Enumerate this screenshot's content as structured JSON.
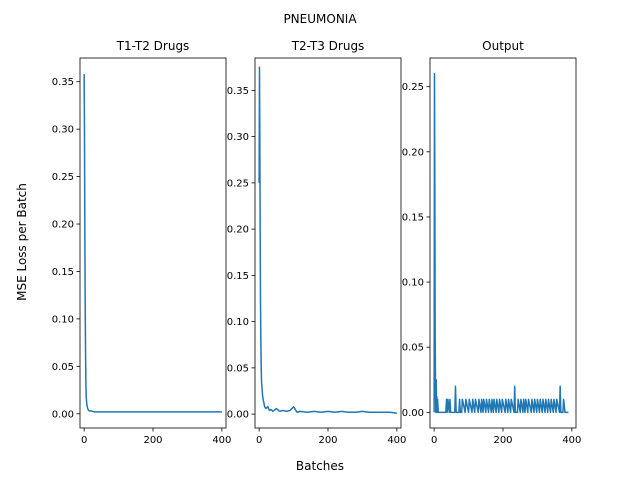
{
  "figure": {
    "suptitle": "PNEUMONIA",
    "xlabel": "Batches",
    "ylabel": "MSE Loss per Batch",
    "line_color": "#1f77b4"
  },
  "chart_data": [
    {
      "type": "line",
      "title": "T1-T2 Drugs",
      "xlim": [
        -12,
        412
      ],
      "ylim": [
        -0.015,
        0.375
      ],
      "xticks": [
        0,
        200,
        400
      ],
      "yticks": [
        0.0,
        0.05,
        0.1,
        0.15,
        0.2,
        0.25,
        0.3,
        0.35
      ],
      "ytick_labels": [
        "0.00",
        "0.05",
        "0.10",
        "0.15",
        "0.20",
        "0.25",
        "0.30",
        "0.35"
      ],
      "x": [
        0,
        1,
        2,
        3,
        4,
        5,
        6,
        8,
        10,
        12,
        15,
        20,
        30,
        40,
        50,
        60,
        80,
        100,
        120,
        150,
        200,
        250,
        300,
        350,
        400
      ],
      "y": [
        0.358,
        0.3,
        0.2,
        0.12,
        0.07,
        0.035,
        0.018,
        0.009,
        0.006,
        0.004,
        0.003,
        0.003,
        0.002,
        0.002,
        0.002,
        0.002,
        0.002,
        0.002,
        0.002,
        0.002,
        0.002,
        0.002,
        0.002,
        0.002,
        0.002
      ]
    },
    {
      "type": "line",
      "title": "T2-T3 Drugs",
      "xlim": [
        -12,
        412
      ],
      "ylim": [
        -0.015,
        0.385
      ],
      "xticks": [
        0,
        200,
        400
      ],
      "yticks": [
        0.0,
        0.05,
        0.1,
        0.15,
        0.2,
        0.25,
        0.3,
        0.35
      ],
      "ytick_labels": [
        "0.00",
        "0.05",
        "0.10",
        "0.15",
        "0.20",
        "0.25",
        "0.30",
        "0.35"
      ],
      "x": [
        0,
        1,
        2,
        3,
        4,
        5,
        6,
        7,
        8,
        10,
        12,
        14,
        16,
        20,
        25,
        30,
        35,
        40,
        50,
        60,
        70,
        80,
        90,
        100,
        110,
        120,
        140,
        160,
        180,
        200,
        220,
        240,
        260,
        280,
        300,
        320,
        340,
        360,
        380,
        400
      ],
      "y": [
        0.25,
        0.375,
        0.3,
        0.2,
        0.12,
        0.08,
        0.05,
        0.035,
        0.03,
        0.02,
        0.015,
        0.012,
        0.008,
        0.006,
        0.008,
        0.004,
        0.005,
        0.003,
        0.006,
        0.003,
        0.004,
        0.003,
        0.004,
        0.008,
        0.002,
        0.003,
        0.002,
        0.003,
        0.002,
        0.003,
        0.002,
        0.003,
        0.002,
        0.002,
        0.003,
        0.002,
        0.002,
        0.002,
        0.002,
        0.001
      ]
    },
    {
      "type": "line",
      "title": "Output",
      "xlim": [
        -12,
        412
      ],
      "ylim": [
        -0.012,
        0.272
      ],
      "xticks": [
        0,
        200,
        400
      ],
      "yticks": [
        0.0,
        0.05,
        0.1,
        0.15,
        0.2,
        0.25
      ],
      "ytick_labels": [
        "0.00",
        "0.05",
        "0.10",
        "0.15",
        "0.20",
        "0.25"
      ],
      "x": [
        0,
        1,
        2,
        3,
        4,
        5,
        6,
        7,
        8,
        9,
        10,
        12,
        14,
        16,
        18,
        20,
        22,
        24,
        26,
        28,
        30,
        34,
        36,
        38,
        40,
        44,
        46,
        48,
        50,
        60,
        62,
        64,
        66,
        72,
        74,
        76,
        80,
        82,
        90,
        92,
        100,
        102,
        110,
        112,
        118,
        120,
        128,
        130,
        136,
        138,
        142,
        144,
        150,
        152,
        158,
        160,
        166,
        168,
        172,
        174,
        180,
        182,
        188,
        190,
        196,
        198,
        206,
        208,
        214,
        216,
        222,
        224,
        232,
        234,
        236,
        242,
        244,
        250,
        252,
        258,
        260,
        264,
        266,
        272,
        274,
        282,
        284,
        290,
        292,
        298,
        300,
        306,
        308,
        314,
        316,
        322,
        324,
        330,
        332,
        338,
        340,
        346,
        348,
        354,
        356,
        364,
        366,
        368,
        374,
        376,
        380,
        390
      ],
      "y": [
        0.0,
        0.26,
        0.18,
        0.06,
        0.02,
        0.0,
        0.025,
        0.0,
        0.012,
        0.0,
        0.01,
        0.0,
        0.0,
        0.0,
        0.0,
        0.0,
        0.0,
        0.0,
        0.0,
        0.0,
        0.0,
        0.0,
        0.01,
        0.0,
        0.01,
        0.0,
        0.01,
        0.0,
        0.0,
        0.0,
        0.02,
        0.0,
        0.0,
        0.0,
        0.01,
        0.0,
        0.0,
        0.01,
        0.0,
        0.01,
        0.0,
        0.01,
        0.0,
        0.01,
        0.0,
        0.01,
        0.0,
        0.01,
        0.0,
        0.01,
        0.0,
        0.01,
        0.0,
        0.01,
        0.0,
        0.01,
        0.0,
        0.01,
        0.0,
        0.01,
        0.0,
        0.01,
        0.0,
        0.01,
        0.0,
        0.01,
        0.0,
        0.01,
        0.0,
        0.01,
        0.0,
        0.01,
        0.0,
        0.02,
        0.0,
        0.0,
        0.01,
        0.0,
        0.01,
        0.0,
        0.01,
        0.0,
        0.01,
        0.0,
        0.01,
        0.0,
        0.01,
        0.0,
        0.01,
        0.0,
        0.01,
        0.0,
        0.01,
        0.0,
        0.01,
        0.0,
        0.01,
        0.0,
        0.01,
        0.0,
        0.01,
        0.0,
        0.01,
        0.0,
        0.01,
        0.0,
        0.02,
        0.0,
        0.0,
        0.01,
        0.0,
        0.0
      ]
    }
  ]
}
